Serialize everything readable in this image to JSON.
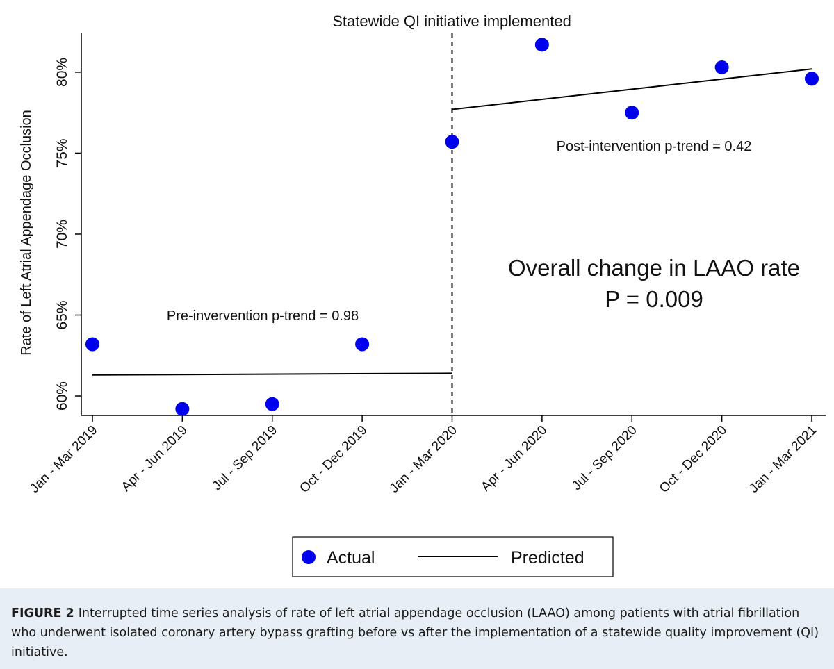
{
  "chart_data": {
    "type": "scatter",
    "title": "Statewide QI initiative implemented",
    "xlabel": "",
    "ylabel": "Rate of Left Atrial Appendage Occlusion",
    "categories": [
      "Jan - Mar 2019",
      "Apr - Jun 2019",
      "Jul - Sep 2019",
      "Oct - Dec 2019",
      "Jan - Mar 2020",
      "Apr - Jun 2020",
      "Jul - Sep 2020",
      "Oct - Dec 2020",
      "Jan - Mar 2021"
    ],
    "ylim": [
      58.8,
      82.4
    ],
    "yticks": [
      60,
      65,
      70,
      75,
      80
    ],
    "ytick_labels": [
      "60%",
      "65%",
      "70%",
      "75%",
      "80%"
    ],
    "intervention_index": 4,
    "series": [
      {
        "name": "Actual",
        "kind": "points",
        "color": "#0000ee",
        "values": [
          63.2,
          59.2,
          59.5,
          63.2,
          75.7,
          81.7,
          77.5,
          80.3,
          79.6
        ]
      },
      {
        "name": "Predicted",
        "kind": "line",
        "color": "#000000",
        "segments": [
          {
            "from_index": 0,
            "to_index": 4,
            "values": [
              61.3,
              61.4
            ]
          },
          {
            "from_index": 4,
            "to_index": 8,
            "values": [
              77.7,
              80.2
            ]
          }
        ]
      }
    ],
    "annotations": {
      "pre_trend": "Pre-invervention p-trend = 0.98",
      "post_trend": "Post-intervention p-trend = 0.42",
      "overall_line1": "Overall change in LAAO rate",
      "overall_line2": "P = 0.009"
    },
    "legend": {
      "position": "bottom",
      "items": [
        "Actual",
        "Predicted"
      ]
    }
  },
  "caption": {
    "label": "FIGURE 2",
    "text": "Interrupted time series analysis of rate of left atrial appendage occlusion (LAAO) among patients with atrial fibrillation who underwent isolated coronary artery bypass grafting before vs after the implementation of a statewide quality improvement (QI) initiative."
  }
}
